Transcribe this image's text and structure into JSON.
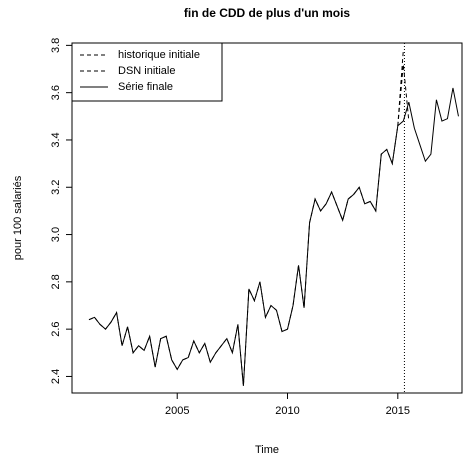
{
  "chart_data": {
    "type": "line",
    "title": "fin de CDD de plus d'un mois",
    "x_label": "Time",
    "y_label": "pour 100 salariés",
    "x": [
      2001,
      2001.25,
      2001.5,
      2001.75,
      2002,
      2002.25,
      2002.5,
      2002.75,
      2003,
      2003.25,
      2003.5,
      2003.75,
      2004,
      2004.25,
      2004.5,
      2004.75,
      2005,
      2005.25,
      2005.5,
      2005.75,
      2006,
      2006.25,
      2006.5,
      2006.75,
      2007,
      2007.25,
      2007.5,
      2007.75,
      2008,
      2008.25,
      2008.5,
      2008.75,
      2009,
      2009.25,
      2009.5,
      2009.75,
      2010,
      2010.25,
      2010.5,
      2010.75,
      2011,
      2011.25,
      2011.5,
      2011.75,
      2012,
      2012.25,
      2012.5,
      2012.75,
      2013,
      2013.25,
      2013.5,
      2013.75,
      2014,
      2014.25,
      2014.5,
      2014.75,
      2015,
      2015.25,
      2015.5,
      2015.75,
      2016,
      2016.25,
      2016.5,
      2016.75,
      2017,
      2017.25,
      2017.5,
      2017.75
    ],
    "series": [
      {
        "name": "historique initiale",
        "color": "#000000",
        "linestyle": "dashed",
        "values": [
          2.64,
          2.65,
          2.62,
          2.6,
          2.63,
          2.67,
          2.53,
          2.61,
          2.5,
          2.53,
          2.51,
          2.57,
          2.44,
          2.56,
          2.57,
          2.47,
          2.43,
          2.47,
          2.48,
          2.55,
          2.5,
          2.54,
          2.46,
          2.5,
          2.53,
          2.56,
          2.5,
          2.62,
          2.36,
          2.77,
          2.72,
          2.8,
          2.65,
          2.7,
          2.68,
          2.59,
          2.6,
          2.7,
          2.87,
          2.69,
          3.05,
          3.15,
          3.1,
          3.13,
          3.18,
          3.12,
          3.06,
          3.15,
          3.17,
          3.2,
          3.13,
          3.14,
          3.1,
          3.34,
          3.36,
          3.3,
          3.46,
          3.78,
          null,
          null,
          null,
          null,
          null,
          null,
          null,
          null,
          null,
          null
        ]
      },
      {
        "name": "DSN initiale",
        "color": "#000000",
        "linestyle": "dashed",
        "values": [
          null,
          null,
          null,
          null,
          null,
          null,
          null,
          null,
          null,
          null,
          null,
          null,
          null,
          null,
          null,
          null,
          null,
          null,
          null,
          null,
          null,
          null,
          null,
          null,
          null,
          null,
          null,
          null,
          null,
          null,
          null,
          null,
          null,
          null,
          null,
          null,
          null,
          null,
          null,
          null,
          null,
          null,
          null,
          null,
          null,
          null,
          null,
          null,
          null,
          null,
          null,
          null,
          null,
          null,
          null,
          null,
          3.46,
          3.72,
          3.48,
          null,
          null,
          null,
          null,
          null,
          null,
          null,
          null,
          null
        ]
      },
      {
        "name": "Série finale",
        "color": "#000000",
        "linestyle": "solid",
        "values": [
          2.64,
          2.65,
          2.62,
          2.6,
          2.63,
          2.67,
          2.53,
          2.61,
          2.5,
          2.53,
          2.51,
          2.57,
          2.44,
          2.56,
          2.57,
          2.47,
          2.43,
          2.47,
          2.48,
          2.55,
          2.5,
          2.54,
          2.46,
          2.5,
          2.53,
          2.56,
          2.5,
          2.62,
          2.36,
          2.77,
          2.72,
          2.8,
          2.65,
          2.7,
          2.68,
          2.59,
          2.6,
          2.7,
          2.87,
          2.69,
          3.05,
          3.15,
          3.1,
          3.13,
          3.18,
          3.12,
          3.06,
          3.15,
          3.17,
          3.2,
          3.13,
          3.14,
          3.1,
          3.34,
          3.36,
          3.3,
          3.46,
          3.48,
          3.56,
          3.45,
          3.38,
          3.31,
          3.34,
          3.57,
          3.48,
          3.49,
          3.62,
          3.5
        ]
      }
    ],
    "vline": 2015.3,
    "xlim": [
      2000.23,
      2017.91
    ],
    "xticks": [
      2005,
      2010,
      2015
    ],
    "ylim": [
      2.33,
      3.81
    ],
    "yticks": [
      2.4,
      2.6,
      2.8,
      {
        "value": 3,
        "label": "3.0"
      },
      3.2,
      3.4,
      3.6,
      3.8
    ],
    "legend": "topleft"
  }
}
